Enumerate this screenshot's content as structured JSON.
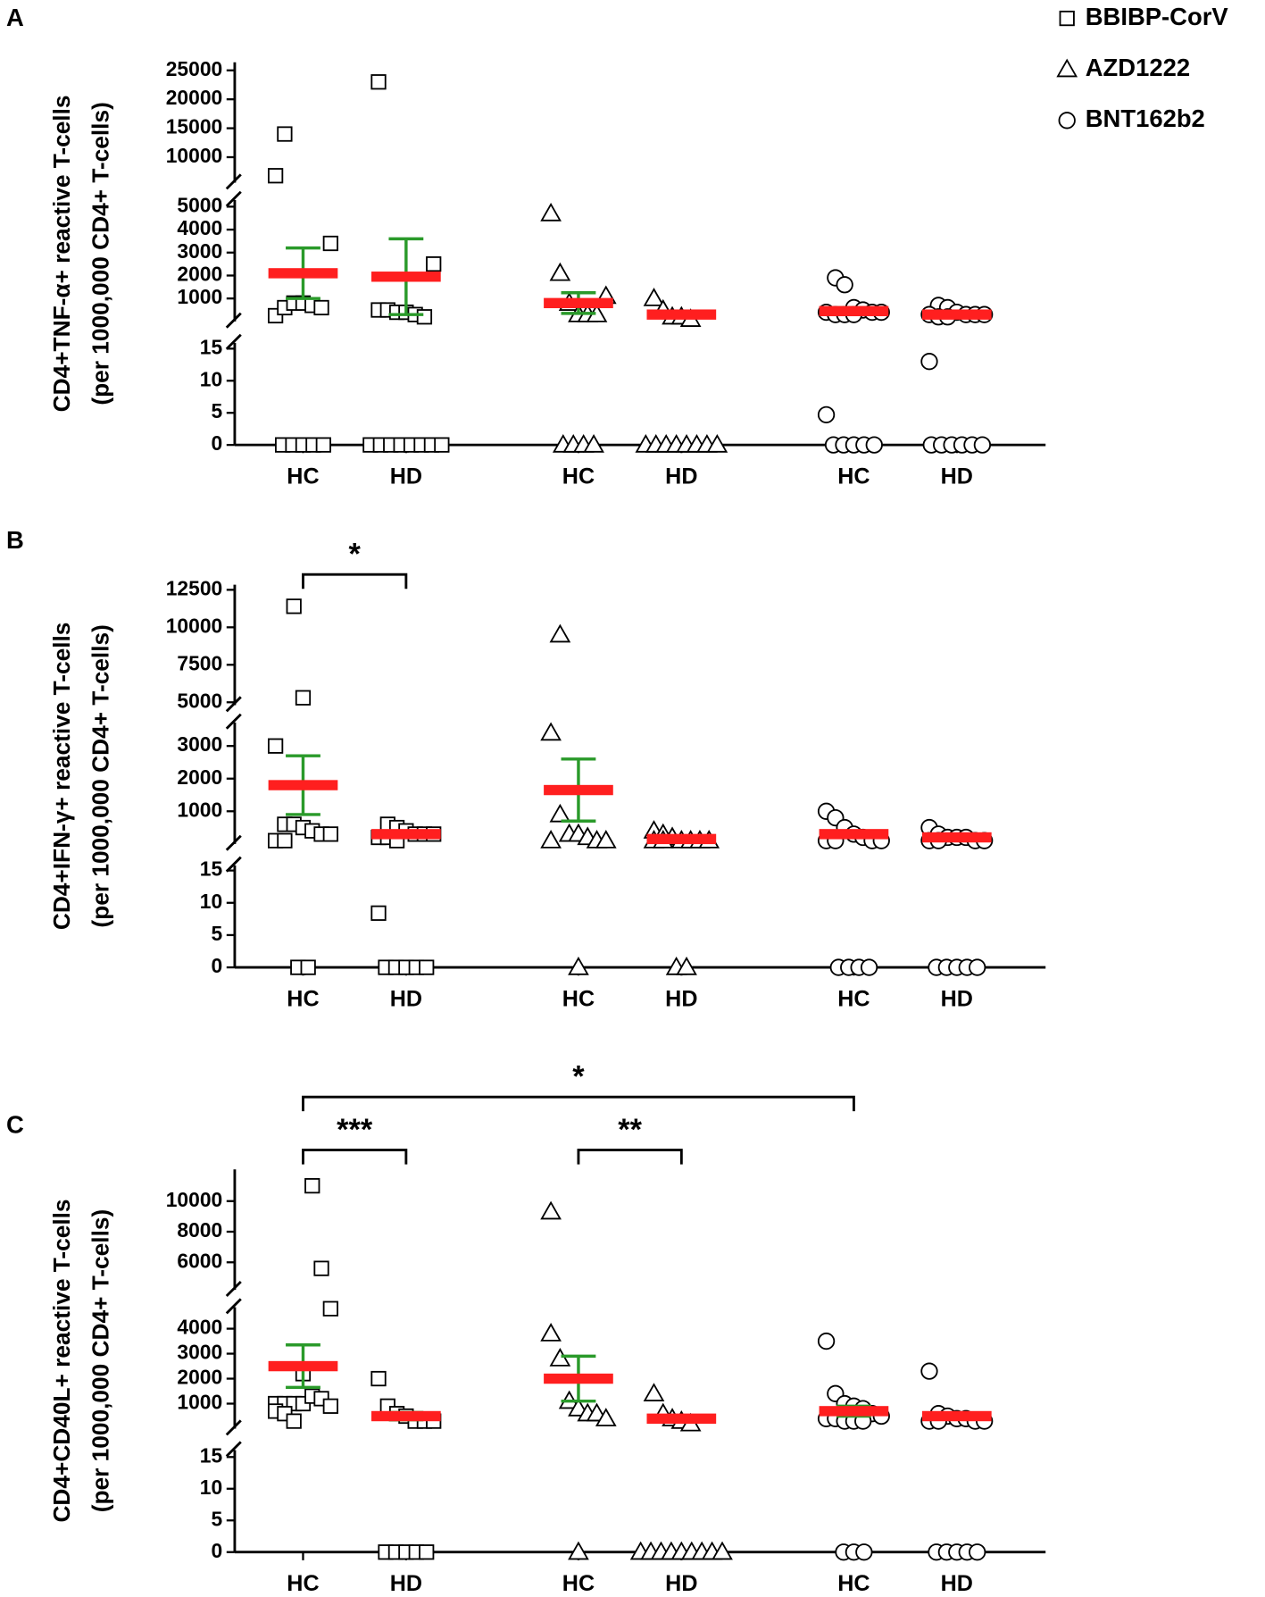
{
  "legend": [
    {
      "name": "BBIBP-CorV",
      "marker": "square"
    },
    {
      "name": "AZD1222",
      "marker": "triangle"
    },
    {
      "name": "BNT162b2",
      "marker": "circle"
    }
  ],
  "mean_color": "#ff1f1f",
  "error_color": "#2a9a2a",
  "chart_data": [
    {
      "type": "scatter",
      "panel": "A",
      "ylabel": [
        "CD4+TNF-α+ reactive T-cells",
        "(per 1000,000 CD4+ T-cells)"
      ],
      "segments": [
        {
          "ylim": [
            0,
            15.9
          ],
          "yticks": [
            0,
            5,
            10,
            15
          ]
        },
        {
          "ylim": [
            0,
            5290
          ],
          "yticks": [
            1000,
            2000,
            3000,
            4000,
            5000
          ]
        },
        {
          "ylim": [
            5600,
            26400
          ],
          "yticks": [
            10000,
            15000,
            20000,
            25000
          ]
        }
      ],
      "series": [
        {
          "groups": [
            {
              "category": "HC",
              "values": [
                0,
                0,
                0,
                0,
                0,
                250,
                600,
                800,
                800,
                700,
                600,
                3400,
                6800,
                14000
              ],
              "mean": 2100,
              "sem": 1100
            },
            {
              "category": "HD",
              "values": [
                0,
                0,
                0,
                0,
                0,
                0,
                0,
                0,
                500,
                500,
                400,
                400,
                300,
                200,
                2500,
                23000
              ],
              "mean": 1950,
              "sem": 1650
            }
          ]
        },
        {
          "groups": [
            {
              "category": "HC",
              "values": [
                0,
                0,
                0,
                0,
                4700,
                2100,
                800,
                300,
                300,
                300,
                1100
              ],
              "mean": 800,
              "sem": 450
            },
            {
              "category": "HD",
              "values": [
                0,
                0,
                0,
                0,
                0,
                0,
                0,
                0,
                1000,
                500,
                200,
                200,
                100
              ],
              "mean": 300,
              "sem": 100
            }
          ]
        },
        {
          "groups": [
            {
              "category": "HC",
              "values": [
                0,
                0,
                0,
                0,
                0,
                4.7,
                1900,
                1600,
                600,
                500,
                400,
                400,
                400,
                300,
                300,
                300
              ],
              "mean": 450,
              "sem": 150
            },
            {
              "category": "HD",
              "values": [
                0,
                0,
                0,
                0,
                0,
                0,
                13,
                700,
                600,
                400,
                300,
                300,
                300,
                300,
                200,
                200
              ],
              "mean": 300,
              "sem": 80
            }
          ]
        }
      ],
      "brackets": []
    },
    {
      "type": "scatter",
      "panel": "B",
      "ylabel": [
        "CD4+IFN-γ+ reactive T-cells",
        "(per 1000,000 CD4+ T-cells)"
      ],
      "segments": [
        {
          "ylim": [
            0,
            15.8
          ],
          "yticks": [
            0,
            5,
            10,
            15
          ]
        },
        {
          "ylim": [
            0,
            3720
          ],
          "yticks": [
            1000,
            2000,
            3000
          ]
        },
        {
          "ylim": [
            4810,
            12840
          ],
          "yticks": [
            5000,
            7500,
            10000,
            12500
          ]
        }
      ],
      "series": [
        {
          "groups": [
            {
              "category": "HC",
              "values": [
                0,
                0,
                3000,
                600,
                600,
                500,
                400,
                300,
                300,
                100,
                100,
                11400,
                5300
              ],
              "mean": 1800,
              "sem": 900
            },
            {
              "category": "HD",
              "values": [
                0,
                0,
                0,
                0,
                0,
                8.4,
                600,
                500,
                400,
                300,
                300,
                300,
                200,
                200,
                100
              ],
              "mean": 300,
              "sem": 80
            }
          ]
        },
        {
          "groups": [
            {
              "category": "HC",
              "values": [
                0,
                3400,
                900,
                300,
                300,
                200,
                100,
                100,
                100,
                9500
              ],
              "mean": 1650,
              "sem": 950
            },
            {
              "category": "HD",
              "values": [
                0,
                0,
                400,
                300,
                200,
                100,
                100,
                100,
                100,
                100,
                100
              ],
              "mean": 150,
              "sem": 50
            }
          ]
        },
        {
          "groups": [
            {
              "category": "HC",
              "values": [
                0,
                0,
                0,
                0,
                1000,
                800,
                500,
                300,
                200,
                100,
                100,
                100,
                100
              ],
              "mean": 300,
              "sem": 100
            },
            {
              "category": "HD",
              "values": [
                0,
                0,
                0,
                0,
                0,
                500,
                300,
                200,
                200,
                200,
                100,
                100,
                100,
                100
              ],
              "mean": 200,
              "sem": 50
            }
          ]
        }
      ],
      "brackets": [
        {
          "groups": [
            0,
            1
          ],
          "label": "*"
        }
      ]
    },
    {
      "type": "scatter",
      "panel": "C",
      "ylabel": [
        "CD4+CD40L+ reactive T-cells",
        "(per 1000,000 CD4+ T-cells)"
      ],
      "segments": [
        {
          "ylim": [
            0,
            16.1
          ],
          "yticks": [
            0,
            5,
            10,
            15
          ]
        },
        {
          "ylim": [
            0,
            4860
          ],
          "yticks": [
            1000,
            2000,
            3000,
            4000
          ]
        },
        {
          "ylim": [
            4200,
            12070
          ],
          "yticks": [
            6000,
            8000,
            10000
          ]
        }
      ],
      "series": [
        {
          "groups": [
            {
              "category": "HC",
              "values": [
                1000,
                1000,
                1000,
                1000,
                1300,
                1200,
                900,
                700,
                600,
                300,
                2200,
                11000,
                5600,
                4800
              ],
              "mean": 2500,
              "sem": 850
            },
            {
              "category": "HD",
              "values": [
                0,
                0,
                0,
                0,
                0,
                2000,
                900,
                600,
                500,
                300,
                300,
                300
              ],
              "mean": 500,
              "sem": 150
            }
          ]
        },
        {
          "groups": [
            {
              "category": "HC",
              "values": [
                0,
                3800,
                2800,
                1100,
                800,
                600,
                600,
                400,
                9300
              ],
              "mean": 2000,
              "sem": 900
            },
            {
              "category": "HD",
              "values": [
                0,
                0,
                0,
                0,
                0,
                0,
                0,
                0,
                0,
                1400,
                600,
                400,
                300,
                200
              ],
              "mean": 400,
              "sem": 100
            }
          ]
        },
        {
          "groups": [
            {
              "category": "HC",
              "values": [
                0,
                0,
                0,
                3500,
                1400,
                1000,
                900,
                800,
                600,
                500,
                400,
                400,
                300,
                300,
                300
              ],
              "mean": 700,
              "sem": 200
            },
            {
              "category": "HD",
              "values": [
                0,
                0,
                0,
                0,
                0,
                2300,
                600,
                500,
                400,
                400,
                300,
                300,
                300,
                300
              ],
              "mean": 500,
              "sem": 100
            }
          ]
        }
      ],
      "brackets": [
        {
          "groups": [
            0,
            1
          ],
          "label": "***"
        },
        {
          "groups": [
            2,
            3
          ],
          "label": "**"
        },
        {
          "groups": [
            0,
            4
          ],
          "label": "*"
        }
      ]
    }
  ]
}
